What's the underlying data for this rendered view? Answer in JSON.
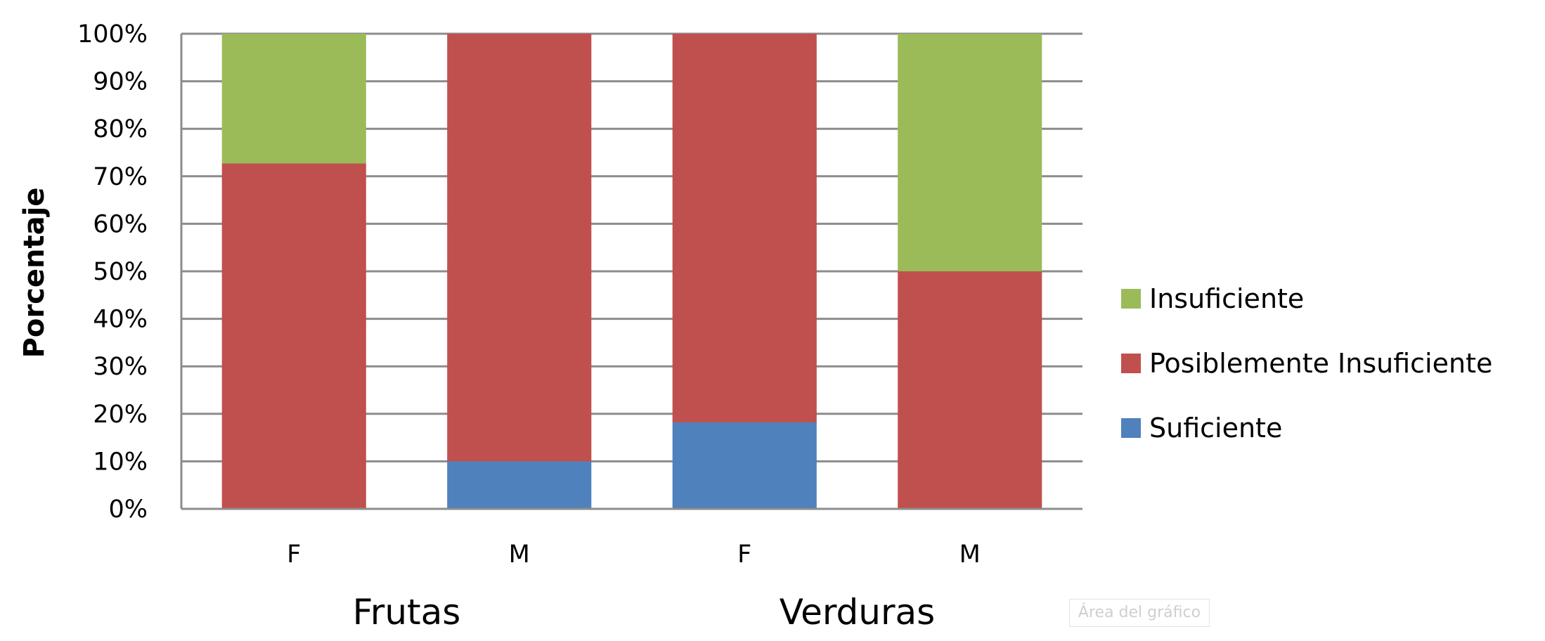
{
  "chart_data": {
    "type": "bar",
    "stacked": true,
    "ylabel": "Porcentaje",
    "ylim": [
      0,
      100
    ],
    "yticks": [
      "0%",
      "10%",
      "20%",
      "30%",
      "40%",
      "50%",
      "60%",
      "70%",
      "80%",
      "90%",
      "100%"
    ],
    "categories": [
      "F",
      "M",
      "F",
      "M"
    ],
    "groups": [
      {
        "label": "Frutas",
        "categories": [
          "F",
          "M"
        ]
      },
      {
        "label": "Verduras",
        "categories": [
          "F",
          "M"
        ]
      }
    ],
    "series": [
      {
        "name": "Suficiente",
        "color": "#4f81bd",
        "values": [
          0,
          10,
          18.2,
          0
        ]
      },
      {
        "name": "Posiblemente Insuficiente",
        "color": "#c0504d",
        "values": [
          72.7,
          90,
          81.8,
          50
        ]
      },
      {
        "name": "Insuficiente",
        "color": "#9bbb59",
        "values": [
          27.3,
          0,
          0,
          50
        ]
      }
    ],
    "legend_position": "right",
    "legend_order": [
      "Insuficiente",
      "Posiblemente Insuficiente",
      "Suficiente"
    ],
    "grid": true
  },
  "tooltip": "Área del gráfico"
}
